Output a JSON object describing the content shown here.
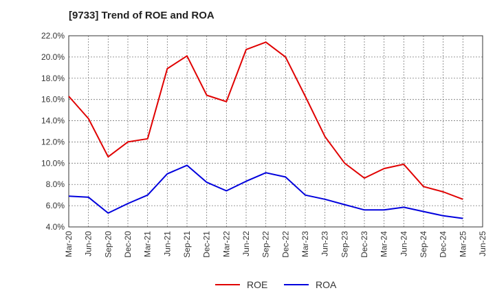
{
  "chart_data": {
    "type": "line",
    "title": "[9733]  Trend of ROE and ROA",
    "xlabel": "",
    "ylabel": "",
    "ylim": [
      4.0,
      22.0
    ],
    "y_ticks": [
      "4.0%",
      "6.0%",
      "8.0%",
      "10.0%",
      "12.0%",
      "14.0%",
      "16.0%",
      "18.0%",
      "20.0%",
      "22.0%"
    ],
    "y_tick_values": [
      4,
      6,
      8,
      10,
      12,
      14,
      16,
      18,
      20,
      22
    ],
    "categories": [
      "Mar-20",
      "Jun-20",
      "Sep-20",
      "Dec-20",
      "Mar-21",
      "Jun-21",
      "Sep-21",
      "Dec-21",
      "Mar-22",
      "Jun-22",
      "Sep-22",
      "Dec-22",
      "Mar-23",
      "Jun-23",
      "Sep-23",
      "Dec-23",
      "Mar-24",
      "Jun-24",
      "Sep-24",
      "Dec-24",
      "Mar-25",
      "Jun-25"
    ],
    "grid": true,
    "legend_position": "bottom",
    "series": [
      {
        "name": "ROE",
        "color": "#e00000",
        "values": [
          16.3,
          14.2,
          10.6,
          12.0,
          12.3,
          18.9,
          20.1,
          16.4,
          15.8,
          20.7,
          21.4,
          20.0,
          16.3,
          12.5,
          10.0,
          8.6,
          9.5,
          9.9,
          7.8,
          7.3,
          6.6,
          null
        ]
      },
      {
        "name": "ROA",
        "color": "#0000dd",
        "values": [
          6.9,
          6.8,
          5.3,
          6.2,
          7.0,
          9.0,
          9.8,
          8.2,
          7.4,
          8.3,
          9.1,
          8.7,
          7.0,
          6.6,
          6.1,
          5.6,
          5.6,
          5.85,
          5.45,
          5.05,
          4.8,
          null
        ]
      }
    ]
  }
}
